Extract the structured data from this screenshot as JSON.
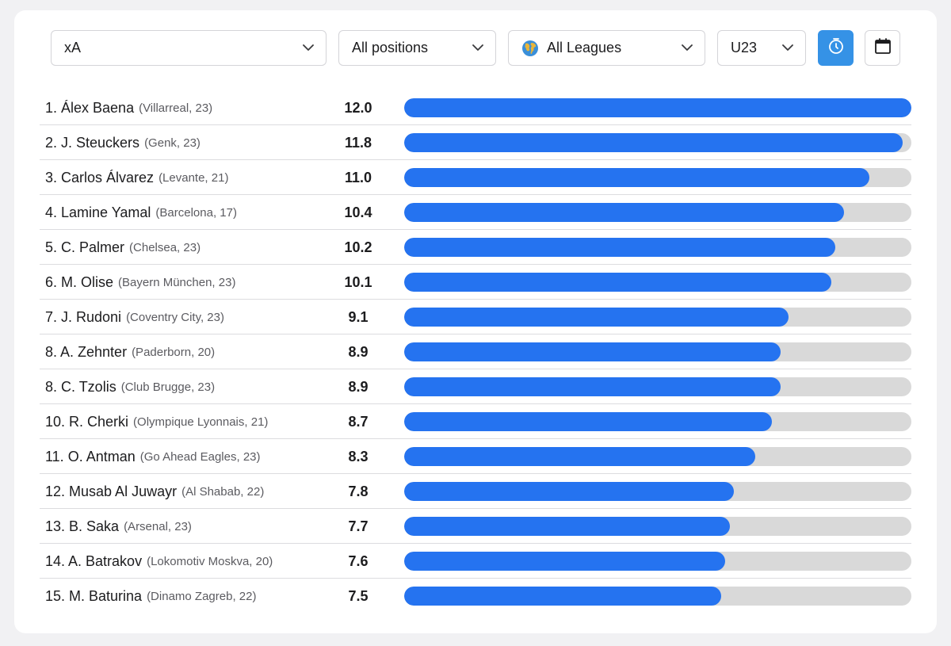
{
  "filters": {
    "metric": "xA",
    "position": "All positions",
    "league": "All Leagues",
    "age": "U23"
  },
  "icons": {
    "chevron": "chevron-down-icon",
    "globe": "globe-icon",
    "timer": "stopwatch-icon",
    "calendar": "calendar-icon"
  },
  "colors": {
    "accent": "#3592e6",
    "bar": "#2573f0",
    "track": "#d9d9d9"
  },
  "max_value": 12.0,
  "players": [
    {
      "name": "1. Álex Baena",
      "meta": "(Villarreal, 23)",
      "value": "12.0",
      "v": 12.0
    },
    {
      "name": "2. J. Steuckers",
      "meta": "(Genk, 23)",
      "value": "11.8",
      "v": 11.8
    },
    {
      "name": "3. Carlos Álvarez",
      "meta": "(Levante, 21)",
      "value": "11.0",
      "v": 11.0
    },
    {
      "name": "4. Lamine Yamal",
      "meta": "(Barcelona, 17)",
      "value": "10.4",
      "v": 10.4
    },
    {
      "name": "5. C. Palmer",
      "meta": "(Chelsea, 23)",
      "value": "10.2",
      "v": 10.2
    },
    {
      "name": "6. M. Olise",
      "meta": "(Bayern München, 23)",
      "value": "10.1",
      "v": 10.1
    },
    {
      "name": "7. J. Rudoni",
      "meta": "(Coventry City, 23)",
      "value": "9.1",
      "v": 9.1
    },
    {
      "name": "8. A. Zehnter",
      "meta": "(Paderborn, 20)",
      "value": "8.9",
      "v": 8.9
    },
    {
      "name": "8. C. Tzolis",
      "meta": "(Club Brugge, 23)",
      "value": "8.9",
      "v": 8.9
    },
    {
      "name": "10. R. Cherki",
      "meta": "(Olympique Lyonnais, 21)",
      "value": "8.7",
      "v": 8.7
    },
    {
      "name": "11. O. Antman",
      "meta": "(Go Ahead Eagles, 23)",
      "value": "8.3",
      "v": 8.3
    },
    {
      "name": "12. Musab Al Juwayr",
      "meta": "(Al Shabab, 22)",
      "value": "7.8",
      "v": 7.8
    },
    {
      "name": "13. B. Saka",
      "meta": "(Arsenal, 23)",
      "value": "7.7",
      "v": 7.7
    },
    {
      "name": "14. A. Batrakov",
      "meta": "(Lokomotiv Moskva, 20)",
      "value": "7.6",
      "v": 7.6
    },
    {
      "name": "15. M. Baturina",
      "meta": "(Dinamo Zagreb, 22)",
      "value": "7.5",
      "v": 7.5
    }
  ]
}
